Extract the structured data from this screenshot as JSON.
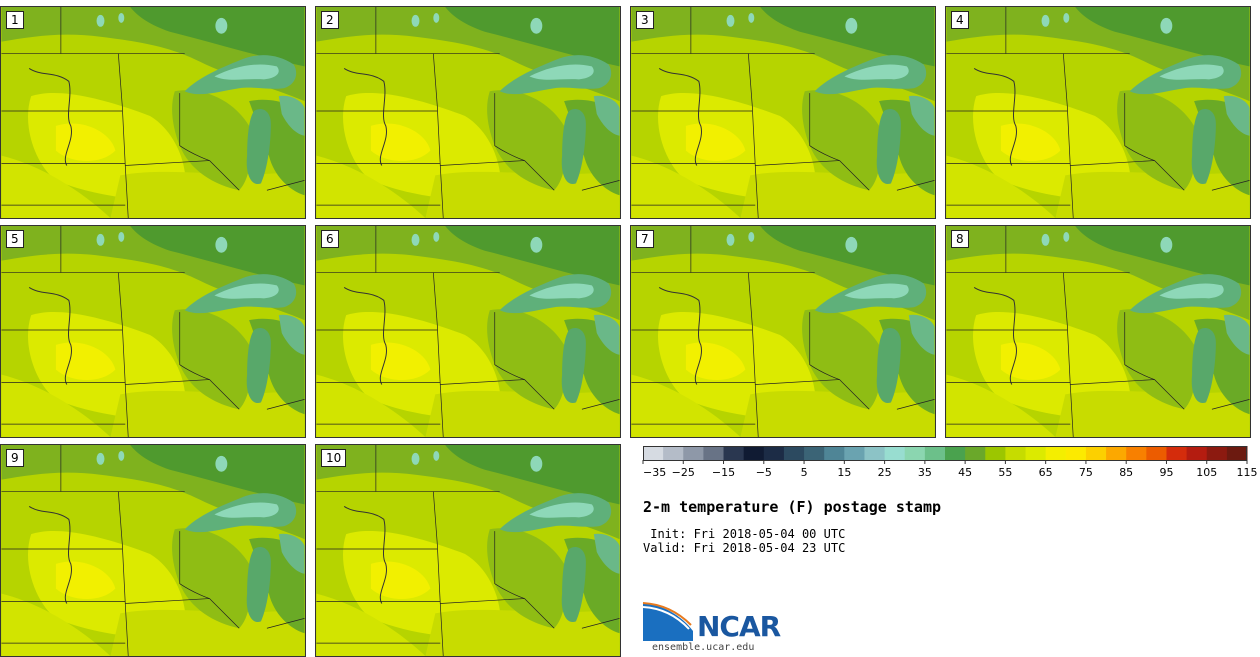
{
  "panels": [
    {
      "label": "1"
    },
    {
      "label": "2"
    },
    {
      "label": "3"
    },
    {
      "label": "4"
    },
    {
      "label": "5"
    },
    {
      "label": "6"
    },
    {
      "label": "7"
    },
    {
      "label": "8"
    },
    {
      "label": "9"
    },
    {
      "label": "10"
    }
  ],
  "colorbar": {
    "colors": [
      "#d6dbe2",
      "#b4bcc8",
      "#8e98a8",
      "#687386",
      "#2a3750",
      "#101b33",
      "#1c2c46",
      "#2c4a60",
      "#3b6476",
      "#4f8596",
      "#6aa3b0",
      "#8cc3c6",
      "#98ddd0",
      "#8bd6b0",
      "#6cc08a",
      "#4aa24e",
      "#6aa82a",
      "#9cc600",
      "#c6dc00",
      "#dcea00",
      "#f4ee00",
      "#fcea00",
      "#fcd000",
      "#fca800",
      "#f88000",
      "#ec5c00",
      "#d42c0c",
      "#b41c10",
      "#8c1a10",
      "#6c1a10"
    ],
    "ticks": [
      "−35",
      "−25",
      "−15",
      "−5",
      "5",
      "15",
      "25",
      "35",
      "45",
      "55",
      "65",
      "75",
      "85",
      "95",
      "105",
      "115"
    ]
  },
  "title": "2-m temperature (F) postage stamp",
  "init": " Init: Fri 2018-05-04 00 UTC",
  "valid": "Valid: Fri 2018-05-04 23 UTC",
  "logo_text": "NCAR",
  "website": "ensemble.ucar.edu"
}
